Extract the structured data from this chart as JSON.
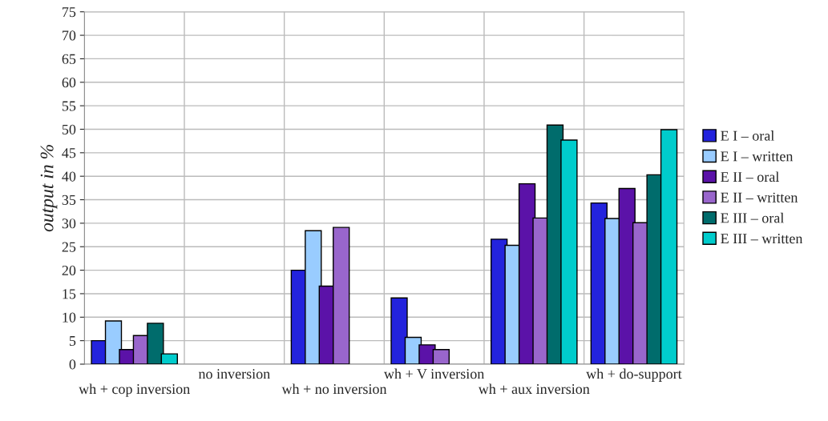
{
  "chart_data": {
    "type": "bar",
    "ylabel": "output in %",
    "categories": [
      "wh + cop inversion",
      "no inversion",
      "wh + no inversion",
      "wh + V inversion",
      "wh + aux inversion",
      "wh + do-support"
    ],
    "series": [
      {
        "name": "E I – oral",
        "color": "#2323dd",
        "values": [
          5,
          null,
          20,
          14.1,
          26.6,
          34.3
        ]
      },
      {
        "name": "E I – written",
        "color": "#99ccff",
        "values": [
          9.2,
          null,
          28.4,
          5.7,
          25.3,
          31
        ]
      },
      {
        "name": "E II – oral",
        "color": "#5b12a8",
        "values": [
          3.1,
          null,
          16.6,
          4.1,
          38.4,
          37.4
        ]
      },
      {
        "name": "E II – written",
        "color": "#9966cc",
        "values": [
          6.1,
          null,
          29.1,
          3.1,
          31.1,
          30.1
        ]
      },
      {
        "name": "E III – oral",
        "color": "#006c6c",
        "values": [
          8.7,
          null,
          null,
          null,
          50.9,
          40.3
        ]
      },
      {
        "name": "E III – written",
        "color": "#00cccc",
        "values": [
          2.2,
          null,
          null,
          null,
          47.7,
          49.9
        ]
      }
    ],
    "ylim": [
      0,
      75
    ],
    "yticks": [
      0,
      5,
      10,
      15,
      20,
      25,
      30,
      35,
      40,
      45,
      50,
      55,
      60,
      65,
      70,
      75
    ],
    "grid": true,
    "legend": "right"
  }
}
